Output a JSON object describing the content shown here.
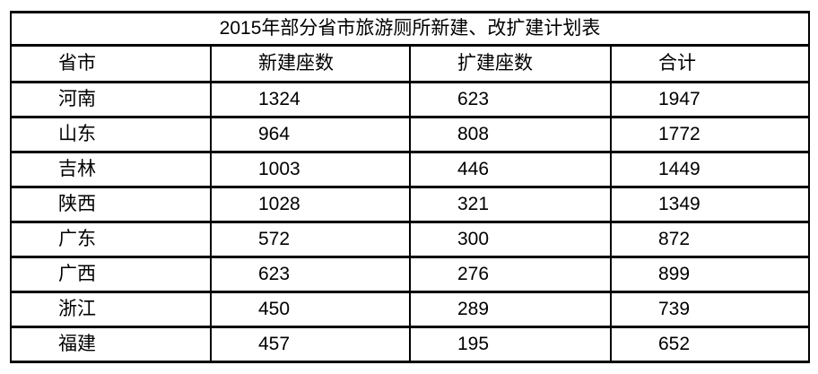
{
  "table": {
    "title": "2015年部分省市旅游厕所新建、改扩建计划表",
    "columns": [
      "省市",
      "新建座数",
      "扩建座数",
      "合计"
    ],
    "rows": [
      [
        "河南",
        "1324",
        "623",
        "1947"
      ],
      [
        "山东",
        "964",
        "808",
        "1772"
      ],
      [
        "吉林",
        "1003",
        "446",
        "1449"
      ],
      [
        "陕西",
        "1028",
        "321",
        "1349"
      ],
      [
        "广东",
        "572",
        "300",
        "872"
      ],
      [
        "广西",
        "623",
        "276",
        "899"
      ],
      [
        "浙江",
        "450",
        "289",
        "739"
      ],
      [
        "福建",
        "457",
        "195",
        "652"
      ]
    ]
  },
  "chart_data": {
    "type": "table",
    "title": "2015年部分省市旅游厕所新建、改扩建计划表",
    "columns": [
      "省市",
      "新建座数",
      "扩建座数",
      "合计"
    ],
    "rows": [
      {
        "province": "河南",
        "new_built": 1324,
        "expanded": 623,
        "total": 1947
      },
      {
        "province": "山东",
        "new_built": 964,
        "expanded": 808,
        "total": 1772
      },
      {
        "province": "吉林",
        "new_built": 1003,
        "expanded": 446,
        "total": 1449
      },
      {
        "province": "陕西",
        "new_built": 1028,
        "expanded": 321,
        "total": 1349
      },
      {
        "province": "广东",
        "new_built": 572,
        "expanded": 300,
        "total": 872
      },
      {
        "province": "广西",
        "new_built": 623,
        "expanded": 276,
        "total": 899
      },
      {
        "province": "浙江",
        "new_built": 450,
        "expanded": 289,
        "total": 739
      },
      {
        "province": "福建",
        "new_built": 457,
        "expanded": 195,
        "total": 652
      }
    ]
  },
  "colors": {
    "border": "#000000",
    "text": "#000000",
    "background": "#ffffff"
  }
}
